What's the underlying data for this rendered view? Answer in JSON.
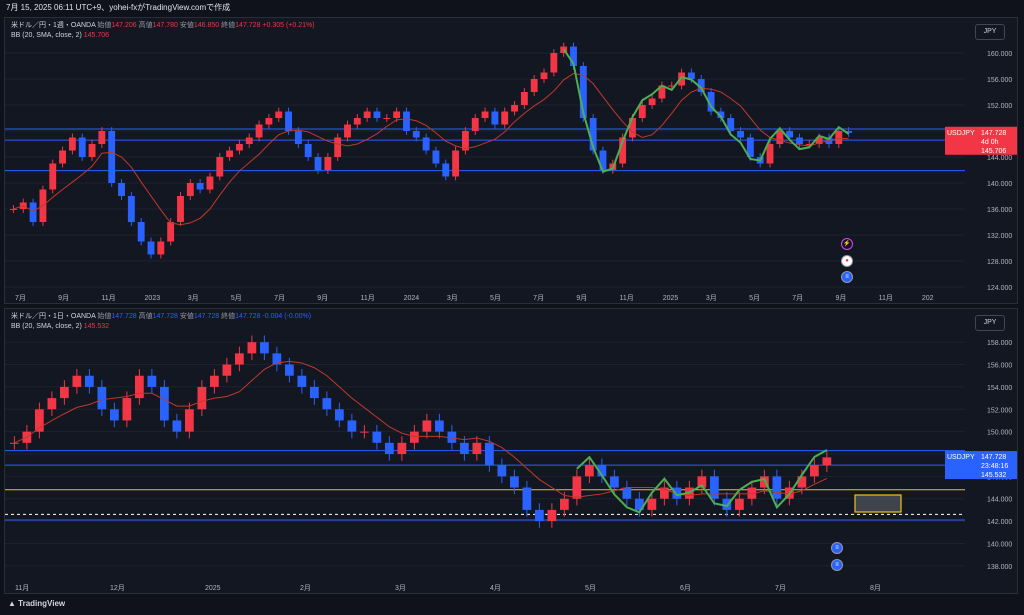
{
  "header": {
    "text": "7月 15, 2025 06:11 UTC+9、yohei-fxがTradingView.comで作成"
  },
  "footer": {
    "brand": "TradingView"
  },
  "colors": {
    "bg": "#131722",
    "up": "#f23645",
    "down": "#2962ff",
    "bb": "#c0392b",
    "green": "#4caf50",
    "hline": "#2962ff",
    "yline": "#e6c619"
  },
  "panel1": {
    "legend_line1_label": "米ドル／円・1週・OANDA",
    "o_label": "始値",
    "o": "147.206",
    "h_label": "高値",
    "h": "147.780",
    "l_label": "安値",
    "l": "146.850",
    "c_label": "終値",
    "c": "147.728",
    "chg": "+0.305 (+0.21%)",
    "bb_label": "BB (20, SMA, close, 2)",
    "bb_value": "145.706",
    "currency": "JPY",
    "price_tag": {
      "symbol": "USDJPY",
      "price": "147.728",
      "time": "4d 0h",
      "bb": "145.706"
    },
    "y_ticks": [
      "160.000",
      "156.000",
      "152.000",
      "148.000",
      "144.000",
      "140.000",
      "136.000",
      "132.000",
      "128.000",
      "124.000"
    ],
    "x_ticks": [
      "7月",
      "9月",
      "11月",
      "2023",
      "3月",
      "5月",
      "7月",
      "9月",
      "11月",
      "2024",
      "3月",
      "5月",
      "7月",
      "9月",
      "11月",
      "2025",
      "3月",
      "5月",
      "7月",
      "9月",
      "11月",
      "202"
    ]
  },
  "panel2": {
    "legend_line1_label": "米ドル／円・1日・OANDA",
    "o_label": "始値",
    "o": "147.728",
    "h_label": "高値",
    "h": "147.728",
    "l_label": "安値",
    "l": "147.728",
    "c_label": "終値",
    "c": "147.728",
    "chg": "-0.004 (-0.00%)",
    "bb_label": "BB (20, SMA, close, 2)",
    "bb_value": "145.532",
    "currency": "JPY",
    "price_tag": {
      "symbol": "USDJPY",
      "price": "147.728",
      "time": "23:48:16",
      "bb": "145.532"
    },
    "y_ticks": [
      "158.000",
      "156.000",
      "154.000",
      "152.000",
      "150.000",
      "148.000",
      "146.000",
      "144.000",
      "142.000",
      "140.000",
      "138.000"
    ],
    "x_ticks": [
      "11月",
      "12月",
      "2025",
      "2月",
      "3月",
      "4月",
      "5月",
      "6月",
      "7月",
      "8月"
    ]
  },
  "chart_data": [
    {
      "type": "candlestick",
      "title": "米ドル／円・1週・OANDA",
      "series": [
        {
          "name": "USDJPY weekly",
          "values": [
            136,
            137,
            134,
            139,
            143,
            145,
            147,
            144,
            146,
            148,
            140,
            138,
            134,
            131,
            129,
            131,
            134,
            138,
            140,
            139,
            141,
            144,
            145,
            146,
            147,
            149,
            150,
            151,
            148,
            146,
            144,
            142,
            144,
            147,
            149,
            150,
            151,
            150,
            150,
            151,
            148,
            147,
            145,
            143,
            141,
            145,
            148,
            150,
            151,
            149,
            151,
            152,
            154,
            156,
            157,
            160,
            161,
            158,
            150,
            145,
            142,
            143,
            147,
            150,
            152,
            153,
            155,
            155,
            157,
            156,
            154,
            151,
            150,
            148,
            147,
            144,
            143,
            146,
            148,
            147,
            146,
            146,
            147,
            146,
            148,
            147.7
          ]
        },
        {
          "name": "BB",
          "values": []
        }
      ],
      "ylim": [
        124,
        162
      ]
    },
    {
      "type": "candlestick",
      "title": "米ドル／円・1日・OANDA",
      "series": [
        {
          "name": "USDJPY daily",
          "values": [
            149,
            150,
            152,
            153,
            154,
            155,
            154,
            152,
            151,
            153,
            155,
            154,
            151,
            150,
            152,
            154,
            155,
            156,
            157,
            158,
            157,
            156,
            155,
            154,
            153,
            152,
            151,
            150,
            150,
            149,
            148,
            149,
            150,
            151,
            150,
            149,
            148,
            149,
            147,
            146,
            145,
            143,
            142,
            143,
            144,
            146,
            147,
            146,
            145,
            144,
            143,
            144,
            145,
            144,
            145,
            146,
            144,
            143,
            144,
            145,
            146,
            144,
            145,
            146,
            147,
            147.7
          ]
        }
      ],
      "ylim": [
        137,
        159
      ]
    }
  ]
}
